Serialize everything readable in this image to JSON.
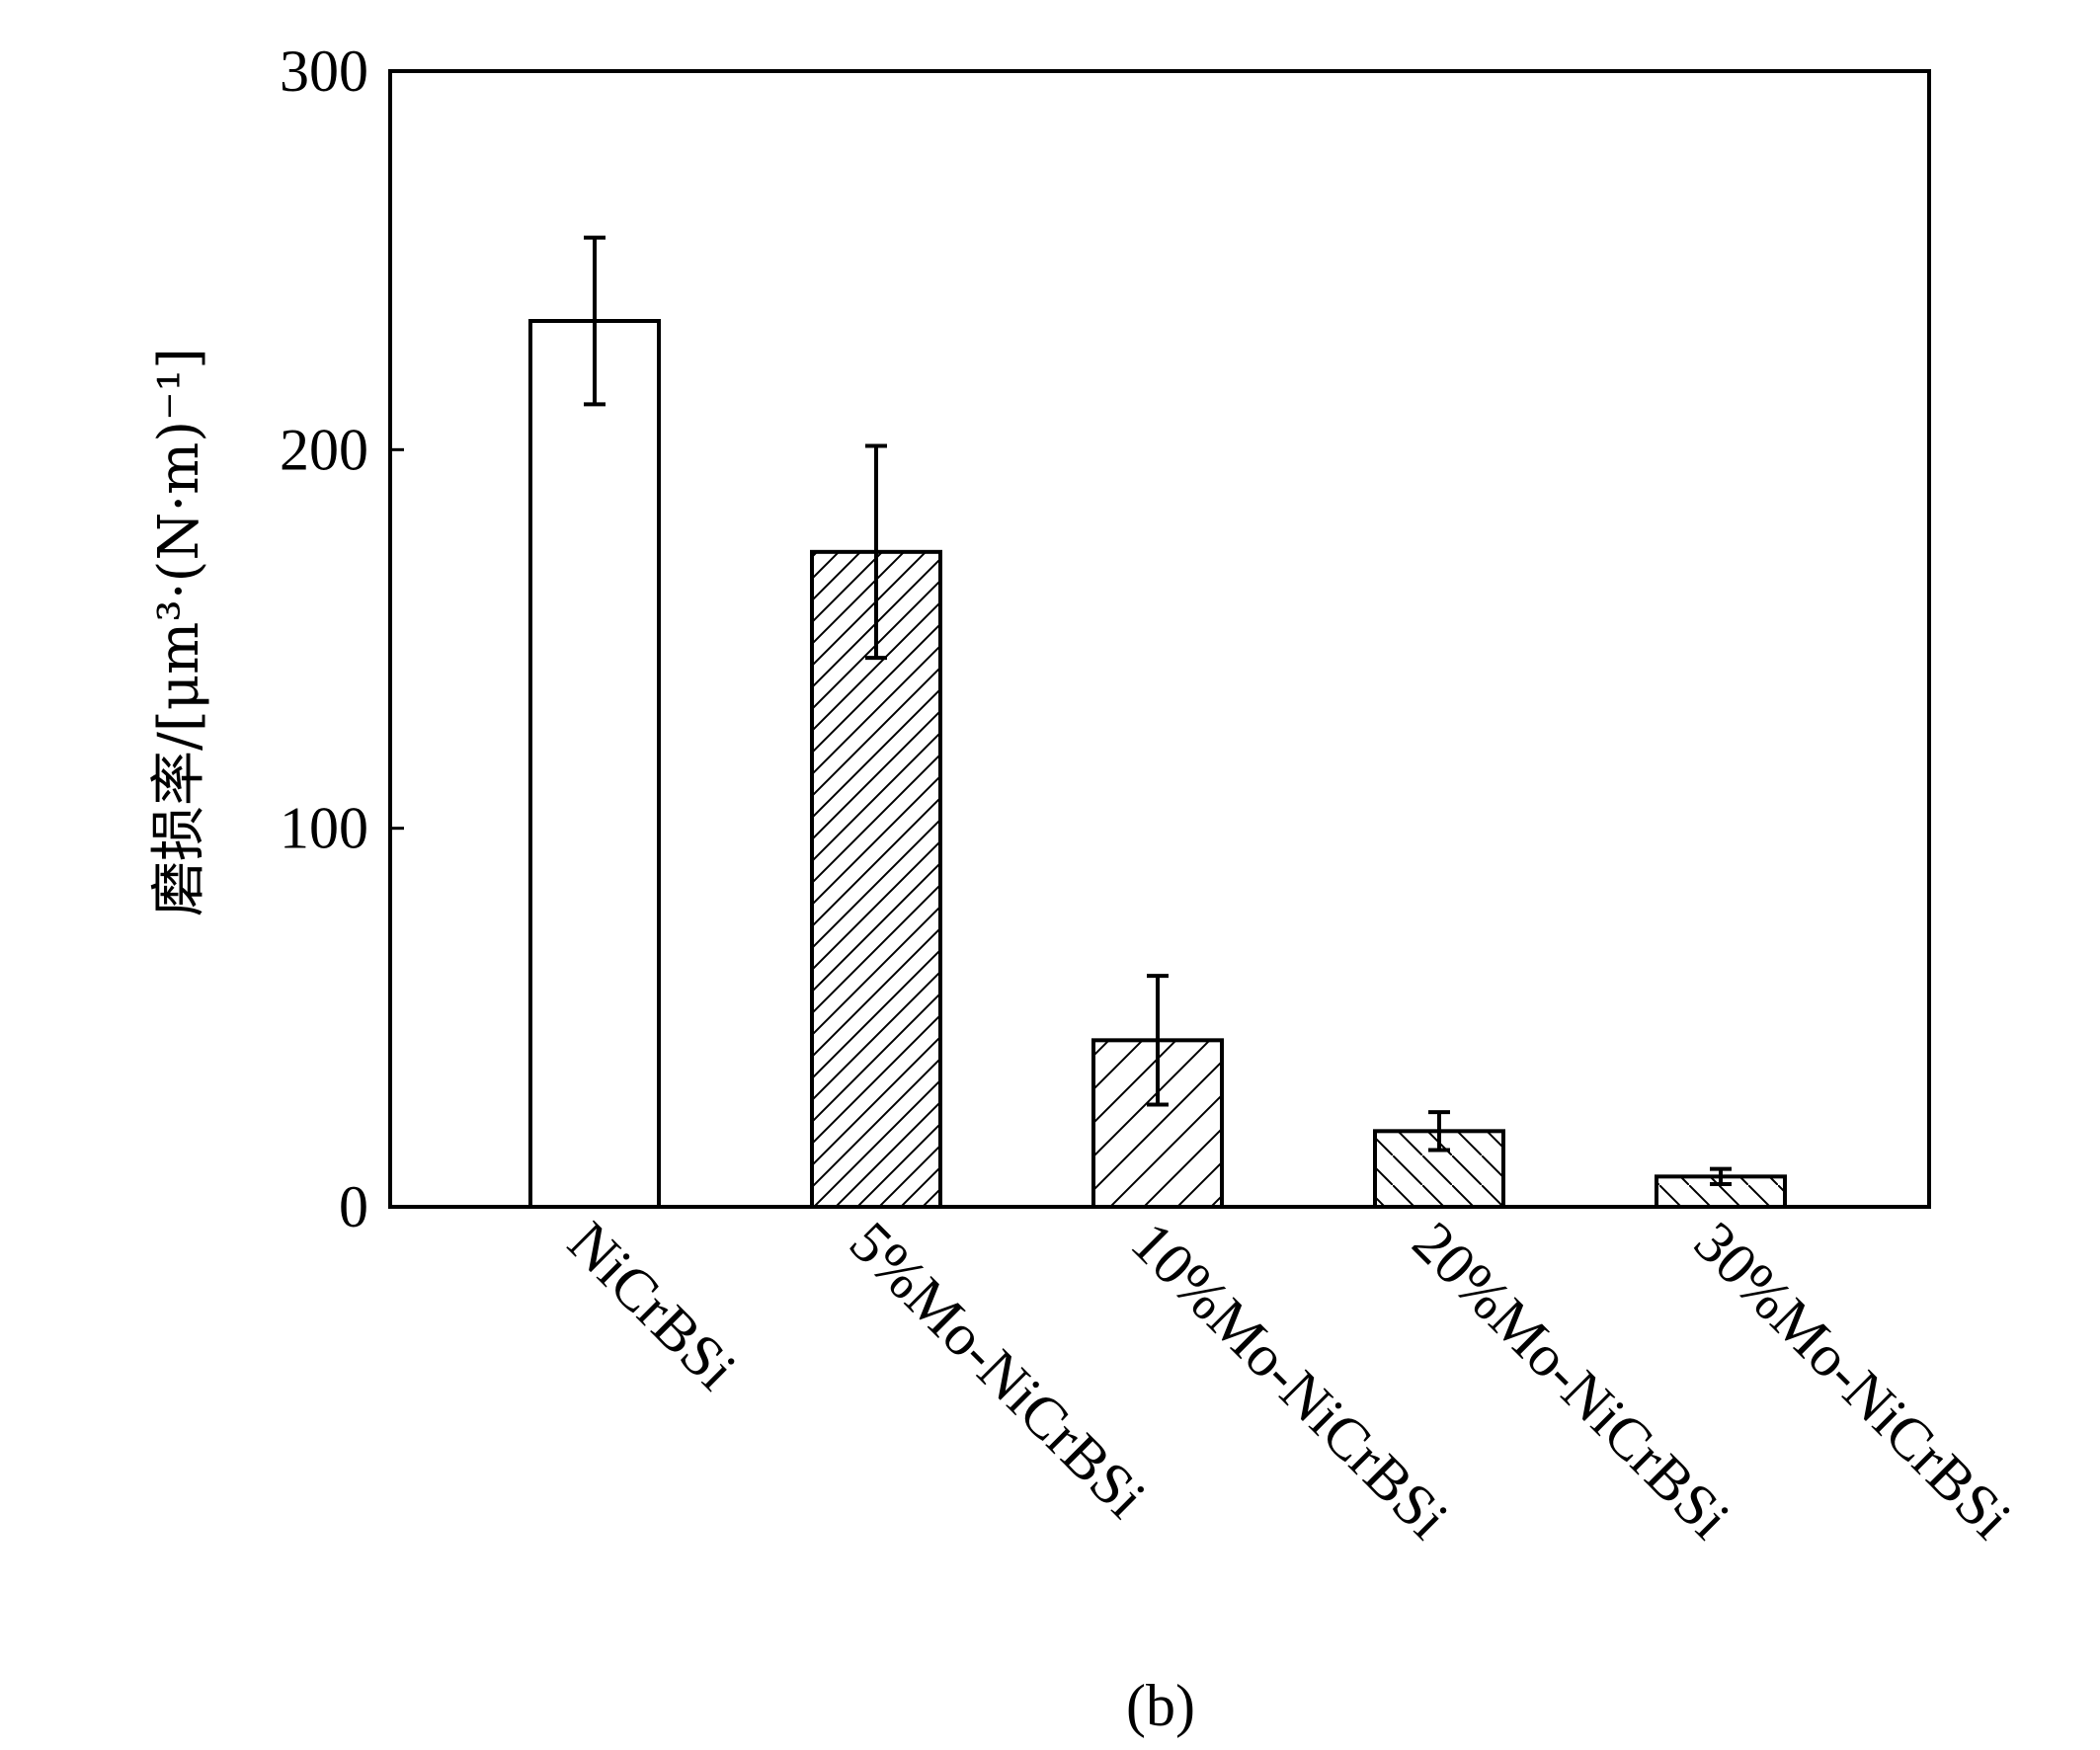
{
  "chart_data": {
    "type": "bar",
    "categories": [
      "NiCrBSi",
      "5%Mo-NiCrBSi",
      "10%Mo-NiCrBSi",
      "20%Mo-NiCrBSi",
      "30%Mo-NiCrBSi"
    ],
    "values": [
      234,
      173,
      44,
      20,
      8
    ],
    "errors": [
      22,
      28,
      17,
      5,
      2
    ],
    "patterns": [
      "none",
      "hatch-forward-dense",
      "hatch-forward-wide",
      "hatch-back",
      "hatch-back"
    ],
    "ylabel": "磨损率/[μm³·(N·m)⁻¹]",
    "ylim": [
      0,
      300
    ],
    "yticks": [
      "0",
      "100",
      "200",
      "300"
    ],
    "panel_label": "(b)",
    "grid": false,
    "colors": {
      "bar_fill": "#ffffff",
      "stroke": "#000000"
    }
  }
}
